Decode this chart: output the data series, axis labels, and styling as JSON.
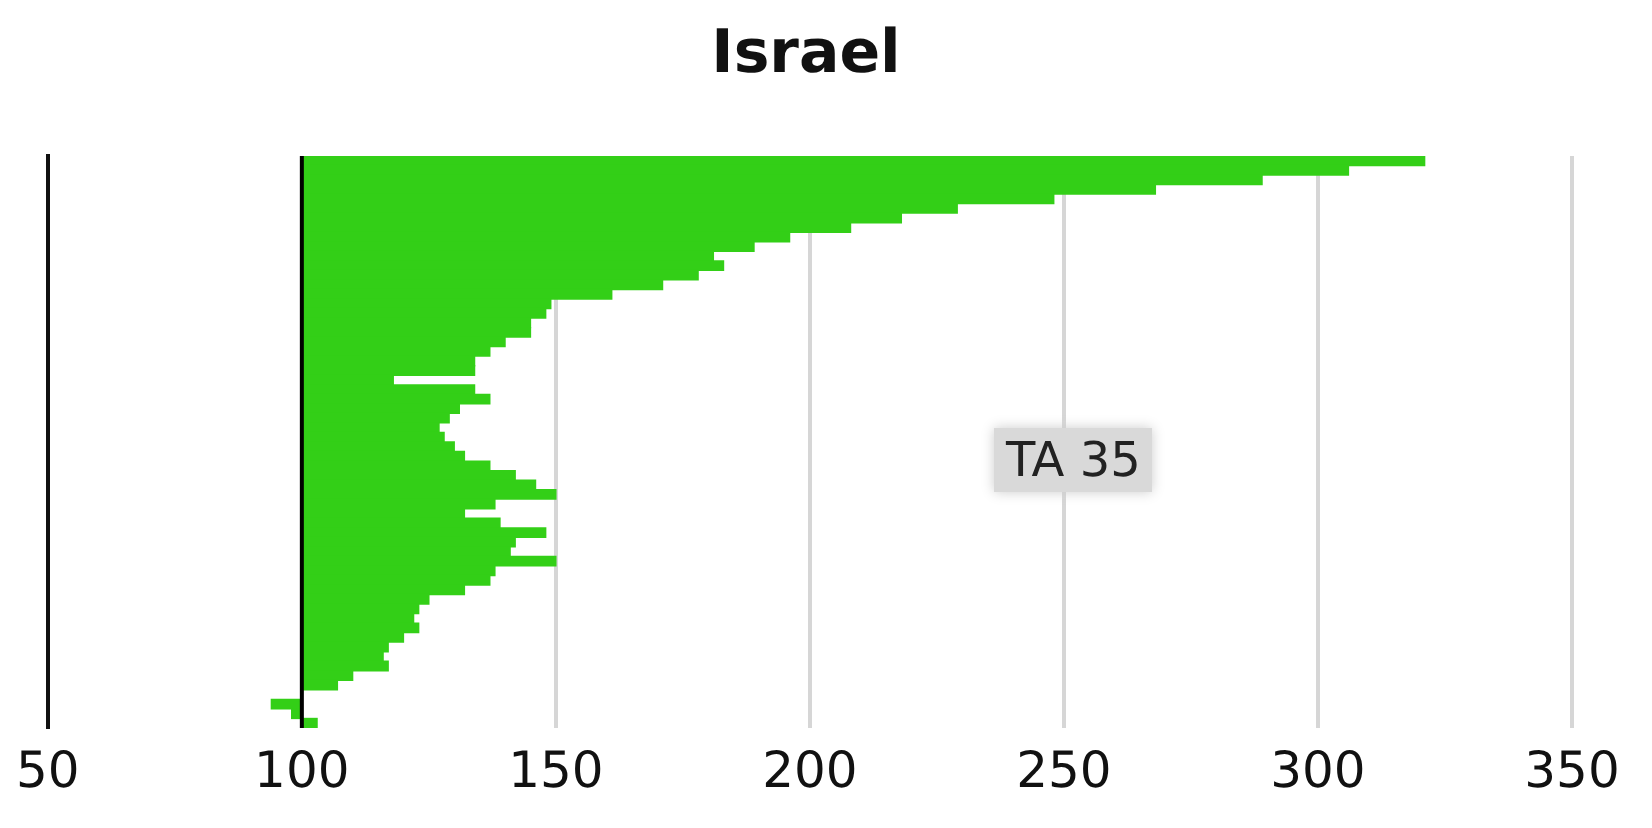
{
  "chart_data": {
    "type": "bar",
    "orientation": "horizontal",
    "title": "Israel",
    "categories": [
      null,
      null,
      null,
      null,
      null,
      null,
      null,
      null,
      null,
      null,
      null,
      null,
      null,
      null,
      null,
      null,
      null,
      null,
      null,
      null,
      null,
      null,
      null,
      null,
      null,
      null,
      null,
      null,
      null,
      null,
      null,
      null,
      null,
      null,
      null,
      null,
      null,
      null,
      null,
      null,
      null,
      null,
      null,
      null,
      null,
      null,
      null,
      null,
      null,
      null,
      null,
      null,
      null,
      null,
      null,
      null,
      null,
      null,
      null,
      null
    ],
    "values": [
      221,
      206,
      189,
      168,
      148,
      129,
      118,
      108,
      96,
      89,
      81,
      83,
      78,
      71,
      61,
      49,
      48,
      45,
      45,
      40,
      37,
      34,
      34,
      18,
      34,
      37,
      31,
      29,
      27,
      28,
      30,
      32,
      37,
      42,
      46,
      50,
      38,
      32,
      39,
      48,
      42,
      41,
      50,
      38,
      37,
      32,
      25,
      23,
      22,
      23,
      20,
      17,
      16,
      17,
      10,
      7,
      0,
      -6,
      -2,
      3
    ],
    "base": [
      100,
      100,
      100,
      100,
      100,
      100,
      100,
      100,
      100,
      100,
      100,
      100,
      100,
      100,
      100,
      100,
      100,
      100,
      100,
      100,
      100,
      100,
      100,
      100,
      100,
      100,
      100,
      100,
      100,
      100,
      100,
      100,
      100,
      100,
      100,
      100,
      100,
      100,
      100,
      100,
      100,
      100,
      100,
      100,
      100,
      100,
      100,
      100,
      100,
      100,
      100,
      100,
      100,
      100,
      100,
      100,
      100,
      100,
      100,
      100
    ],
    "color": "#33cf17",
    "xlim": [
      50,
      350
    ],
    "xticks": [
      50,
      100,
      150,
      200,
      250,
      300,
      350
    ],
    "grid": "x",
    "ref_lines": [
      {
        "axis": "x",
        "value": 100,
        "color": "#000000"
      }
    ],
    "annotations": [
      "TA 35"
    ]
  }
}
